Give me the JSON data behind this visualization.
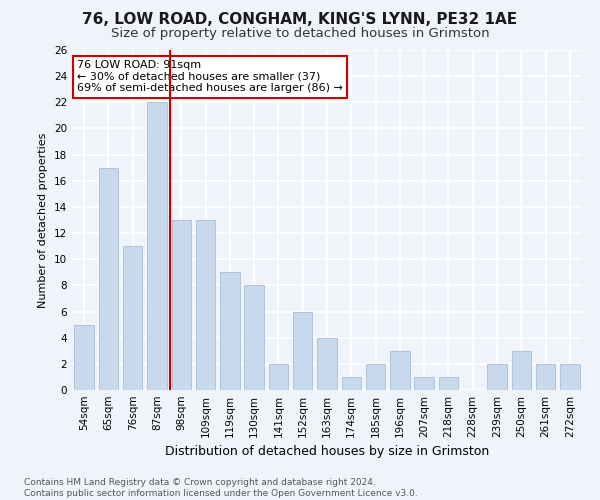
{
  "title": "76, LOW ROAD, CONGHAM, KING'S LYNN, PE32 1AE",
  "subtitle": "Size of property relative to detached houses in Grimston",
  "xlabel": "Distribution of detached houses by size in Grimston",
  "ylabel": "Number of detached properties",
  "footnote": "Contains HM Land Registry data © Crown copyright and database right 2024.\nContains public sector information licensed under the Open Government Licence v3.0.",
  "categories": [
    "54sqm",
    "65sqm",
    "76sqm",
    "87sqm",
    "98sqm",
    "109sqm",
    "119sqm",
    "130sqm",
    "141sqm",
    "152sqm",
    "163sqm",
    "174sqm",
    "185sqm",
    "196sqm",
    "207sqm",
    "218sqm",
    "228sqm",
    "239sqm",
    "250sqm",
    "261sqm",
    "272sqm"
  ],
  "values": [
    5,
    17,
    11,
    22,
    13,
    13,
    9,
    8,
    2,
    6,
    4,
    1,
    2,
    3,
    1,
    1,
    0,
    2,
    3,
    2,
    2
  ],
  "bar_color": "#c8d8ed",
  "bar_edge_color": "#aabdd8",
  "red_line_index": 3.55,
  "annotation_text": "76 LOW ROAD: 91sqm\n← 30% of detached houses are smaller (37)\n69% of semi-detached houses are larger (86) →",
  "annotation_box_color": "#ffffff",
  "annotation_box_edge": "#cc0000",
  "ylim": [
    0,
    26
  ],
  "yticks": [
    0,
    2,
    4,
    6,
    8,
    10,
    12,
    14,
    16,
    18,
    20,
    22,
    24,
    26
  ],
  "bg_color": "#f0f4fa",
  "plot_bg_color": "#f0f4fa",
  "grid_color": "#ffffff",
  "title_fontsize": 11,
  "subtitle_fontsize": 9.5,
  "xlabel_fontsize": 9,
  "ylabel_fontsize": 8,
  "footnote_fontsize": 6.5,
  "tick_fontsize": 7.5,
  "annotation_fontsize": 8
}
